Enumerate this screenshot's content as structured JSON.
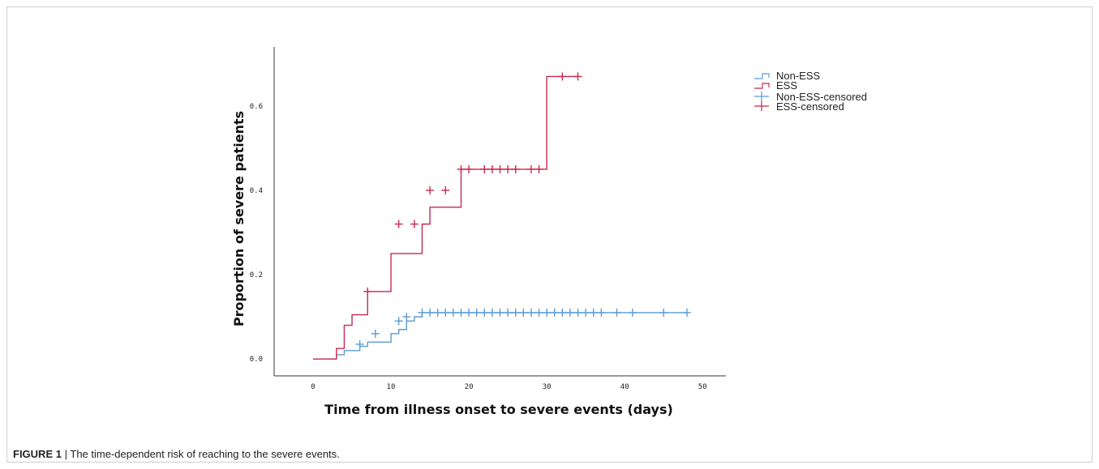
{
  "figure": {
    "label": "FIGURE 1",
    "separator": "|",
    "caption": "The time-dependent risk of reaching to the severe events."
  },
  "chart_data": {
    "type": "line",
    "step": true,
    "xlabel": "Time from illness onset to severe events (days)",
    "ylabel": "Proportion of severe patients",
    "xlim": [
      -5,
      53
    ],
    "ylim": [
      -0.04,
      0.74
    ],
    "xticks": [
      0,
      10,
      20,
      30,
      40,
      50
    ],
    "yticks": [
      0.0,
      0.2,
      0.4,
      0.6
    ],
    "ytick_labels": [
      "0.0",
      "0.2",
      "0.4",
      "0.6"
    ],
    "grid": false,
    "legend_position": "top-right",
    "legend": [
      "Non-ESS",
      "ESS",
      "Non-ESS-censored",
      "ESS-censored"
    ],
    "colors": {
      "non_ess": "#5b9bd5",
      "ess": "#c8294e"
    },
    "series": [
      {
        "name": "Non-ESS",
        "color": "#5b9bd5",
        "x": [
          0,
          2,
          3,
          4,
          6,
          7,
          8,
          10,
          11,
          12,
          13,
          14,
          48
        ],
        "y": [
          0,
          0,
          0.01,
          0.02,
          0.03,
          0.04,
          0.04,
          0.06,
          0.07,
          0.09,
          0.1,
          0.11,
          0.11
        ],
        "censored_x": [
          6,
          8,
          11,
          12,
          14,
          15,
          16,
          17,
          18,
          19,
          20,
          21,
          22,
          23,
          24,
          25,
          26,
          27,
          28,
          29,
          30,
          31,
          32,
          33,
          34,
          35,
          36,
          37,
          39,
          41,
          45,
          48
        ],
        "censored_y": [
          0.035,
          0.06,
          0.09,
          0.1,
          0.11,
          0.11,
          0.11,
          0.11,
          0.11,
          0.11,
          0.11,
          0.11,
          0.11,
          0.11,
          0.11,
          0.11,
          0.11,
          0.11,
          0.11,
          0.11,
          0.11,
          0.11,
          0.11,
          0.11,
          0.11,
          0.11,
          0.11,
          0.11,
          0.11,
          0.11,
          0.11,
          0.11
        ]
      },
      {
        "name": "ESS",
        "color": "#c8294e",
        "x": [
          0,
          2,
          3,
          4,
          5,
          7,
          8,
          10,
          14,
          15,
          19,
          30,
          34
        ],
        "y": [
          0,
          0,
          0.025,
          0.08,
          0.105,
          0.16,
          0.16,
          0.25,
          0.32,
          0.36,
          0.45,
          0.67,
          0.67
        ],
        "censored_x": [
          7,
          11,
          13,
          15,
          17,
          19,
          20,
          22,
          23,
          24,
          25,
          26,
          28,
          29,
          32,
          34
        ],
        "censored_y": [
          0.16,
          0.32,
          0.32,
          0.4,
          0.4,
          0.45,
          0.45,
          0.45,
          0.45,
          0.45,
          0.45,
          0.45,
          0.45,
          0.45,
          0.67,
          0.67
        ]
      }
    ]
  }
}
